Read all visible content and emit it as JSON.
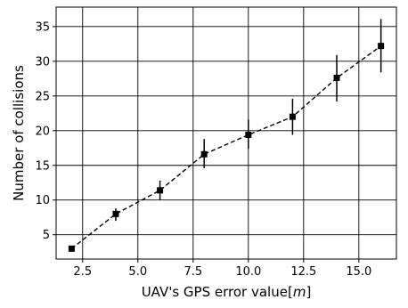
{
  "chart_data": {
    "type": "line",
    "title": "",
    "xlabel_prefix": "UAV's GPS error value[",
    "xlabel_unit": "m",
    "xlabel_suffix": "]",
    "ylabel": "Number of collisions",
    "xlim": [
      1.3,
      16.7
    ],
    "ylim": [
      1.5,
      37.8
    ],
    "xticks": [
      2.5,
      5.0,
      7.5,
      10.0,
      12.5,
      15.0
    ],
    "xtick_labels": [
      "2.5",
      "5.0",
      "7.5",
      "10.0",
      "12.5",
      "15.0"
    ],
    "yticks": [
      5,
      10,
      15,
      20,
      25,
      30,
      35
    ],
    "ytick_labels": [
      "5",
      "10",
      "15",
      "20",
      "25",
      "30",
      "35"
    ],
    "grid": true,
    "marker": "square",
    "line_style": "dashed",
    "color": "#000000",
    "series": [
      {
        "x": [
          2,
          4,
          6,
          8,
          10,
          12,
          14,
          16
        ],
        "y": [
          3.0,
          8.0,
          11.4,
          16.6,
          19.4,
          22.0,
          27.6,
          32.2
        ],
        "err_low": [
          3.0,
          7.0,
          10.0,
          14.6,
          17.4,
          19.4,
          24.2,
          28.4
        ],
        "err_high": [
          3.0,
          8.8,
          12.8,
          18.8,
          21.6,
          24.6,
          30.9,
          36.1
        ]
      }
    ]
  }
}
